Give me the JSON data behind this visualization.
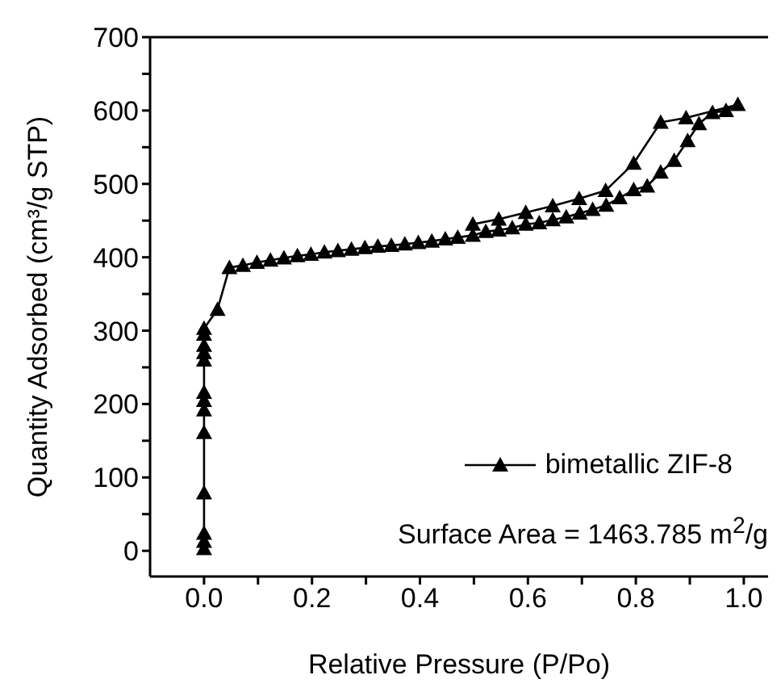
{
  "chart_data": {
    "type": "line",
    "xlabel": "Relative Pressure (P/Po)",
    "ylabel": "Quantity Adsorbed (cm³/g STP)",
    "annotations": [
      "Surface Area = 1463.785 m$^{2}$/g"
    ],
    "xlim": [
      -0.1,
      1.045
    ],
    "xticks": [
      {
        "value": 0,
        "label": "0.0"
      },
      {
        "value": 0.1,
        "label": null
      },
      {
        "value": 0.2,
        "label": "0.2"
      },
      {
        "value": 0.3,
        "label": null
      },
      {
        "value": 0.4,
        "label": "0.4"
      },
      {
        "value": 0.5,
        "label": null
      },
      {
        "value": 0.6,
        "label": "0.6"
      },
      {
        "value": 0.7,
        "label": null
      },
      {
        "value": 0.8,
        "label": "0.8"
      },
      {
        "value": 0.9,
        "label": null
      },
      {
        "value": 1,
        "label": "1.0"
      }
    ],
    "ylim": [
      -35,
      700
    ],
    "yticks": [
      0,
      {
        "value": 50,
        "label": null
      },
      100,
      {
        "value": 150,
        "label": null
      },
      200,
      {
        "value": 250,
        "label": null
      },
      300,
      {
        "value": 350,
        "label": null
      },
      400,
      {
        "value": 450,
        "label": null
      },
      500,
      {
        "value": 550,
        "label": null
      },
      600,
      {
        "value": 650,
        "label": null
      },
      700
    ],
    "legend": "bottom right",
    "marker": "triangle",
    "line_style": "solid",
    "series": [
      {
        "name": "bimetallic ZIF-8",
        "color": "#000000",
        "x": [
          0,
          0,
          0,
          0,
          0,
          0,
          0,
          0,
          0,
          0,
          0,
          0,
          0,
          0.025,
          0.047,
          0.072,
          0.098,
          0.123,
          0.148,
          0.173,
          0.198,
          0.223,
          0.248,
          0.273,
          0.298,
          0.322,
          0.347,
          0.372,
          0.397,
          0.422,
          0.447,
          0.47,
          0.498,
          0.522,
          0.546,
          0.571,
          0.596,
          0.621,
          0.646,
          0.671,
          0.696,
          0.72,
          0.745,
          0.77,
          0.796,
          0.821,
          0.846,
          0.871,
          0.896,
          0.917,
          0.942,
          0.967,
          0.989,
          0.893,
          0.846,
          0.796,
          0.744,
          0.695,
          0.646,
          0.596,
          0.546,
          0.498
        ],
        "values": [
          3,
          13,
          24,
          79,
          161,
          192,
          205,
          216,
          260,
          270,
          280,
          295,
          303,
          329,
          386,
          389,
          393,
          396,
          399,
          402,
          404,
          407,
          409,
          411,
          413,
          415,
          416,
          418,
          420,
          422,
          425,
          427,
          430,
          435,
          437,
          440,
          445,
          447,
          451,
          455,
          460,
          465,
          471,
          481,
          492,
          497,
          516,
          532,
          559,
          582,
          597,
          600,
          608,
          590,
          584,
          528,
          491,
          480,
          470,
          461,
          452,
          445
        ]
      }
    ]
  }
}
